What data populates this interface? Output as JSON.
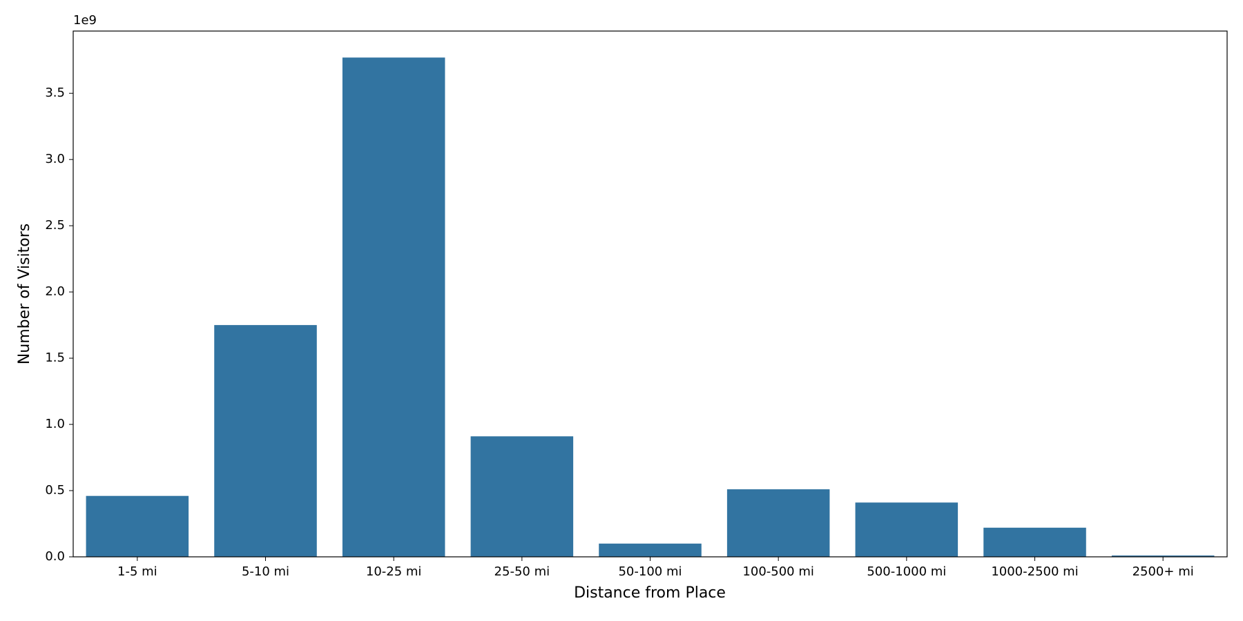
{
  "chart_data": {
    "type": "bar",
    "x_label": "Distance from Place",
    "y_label": "Number of Visitors",
    "y_offset_label": "1e9",
    "categories": [
      "1-5 mi",
      "5-10 mi",
      "10-25 mi",
      "25-50 mi",
      "50-100 mi",
      "100-500 mi",
      "500-1000 mi",
      "1000-2500 mi",
      "2500+ mi"
    ],
    "values": [
      0.46,
      1.75,
      3.77,
      0.91,
      0.1,
      0.51,
      0.41,
      0.22,
      0.01
    ],
    "color": "#3274a1",
    "ylim": [
      0,
      3.97
    ],
    "yticks": [
      {
        "value": 0,
        "label": "0.0"
      },
      0.5,
      {
        "value": 1,
        "label": "1.0"
      },
      1.5,
      {
        "value": 2,
        "label": "2.0"
      },
      2.5,
      {
        "value": 3,
        "label": "3.0"
      },
      3.5
    ],
    "grid": false
  }
}
